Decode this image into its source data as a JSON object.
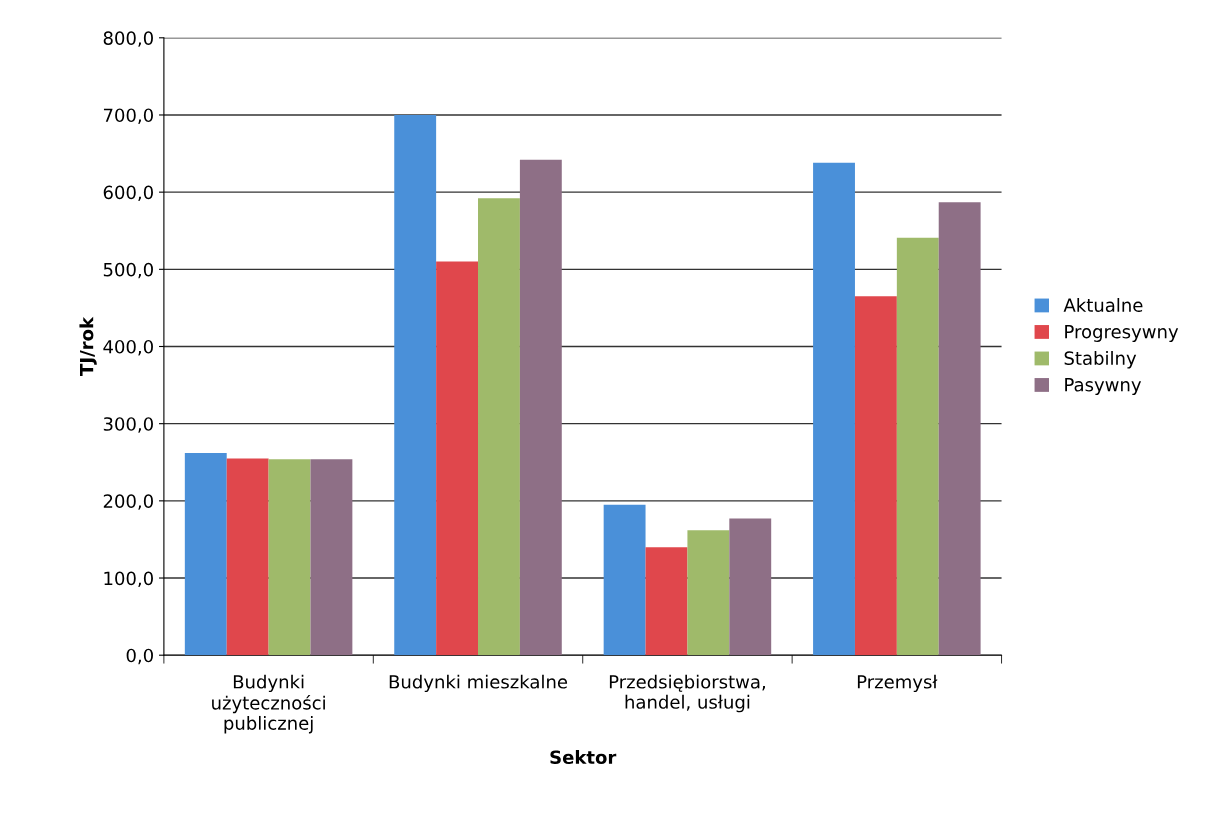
{
  "chart_data": {
    "type": "bar",
    "xlabel": "Sektor",
    "ylabel": "TJ/rok",
    "categories": [
      "Budynki\nużyteczności\npublicznej",
      "Budynki mieszkalne",
      "Przedsiębiorstwa,\nhandel, usługi",
      "Przemysł"
    ],
    "series": [
      {
        "name": "Aktualne",
        "color": "#4a90d9",
        "values": [
          262,
          700,
          195,
          638
        ]
      },
      {
        "name": "Progresywny",
        "color": "#e0474c",
        "values": [
          255,
          510,
          140,
          465
        ]
      },
      {
        "name": "Stabilny",
        "color": "#9fba6a",
        "values": [
          254,
          592,
          162,
          541
        ]
      },
      {
        "name": "Pasywny",
        "color": "#8e6f86",
        "values": [
          254,
          642,
          177,
          587
        ]
      }
    ],
    "ylim": [
      0,
      800
    ],
    "yticks": [
      {
        "value": 0,
        "label": "0,0"
      },
      {
        "value": 100,
        "label": "100,0"
      },
      {
        "value": 200,
        "label": "200,0"
      },
      {
        "value": 300,
        "label": "300,0"
      },
      {
        "value": 400,
        "label": "400,0"
      },
      {
        "value": 500,
        "label": "500,0"
      },
      {
        "value": 600,
        "label": "600,0"
      },
      {
        "value": 700,
        "label": "700,0"
      },
      {
        "value": 800,
        "label": "800,0"
      }
    ],
    "grid": "y",
    "legend": "right"
  }
}
